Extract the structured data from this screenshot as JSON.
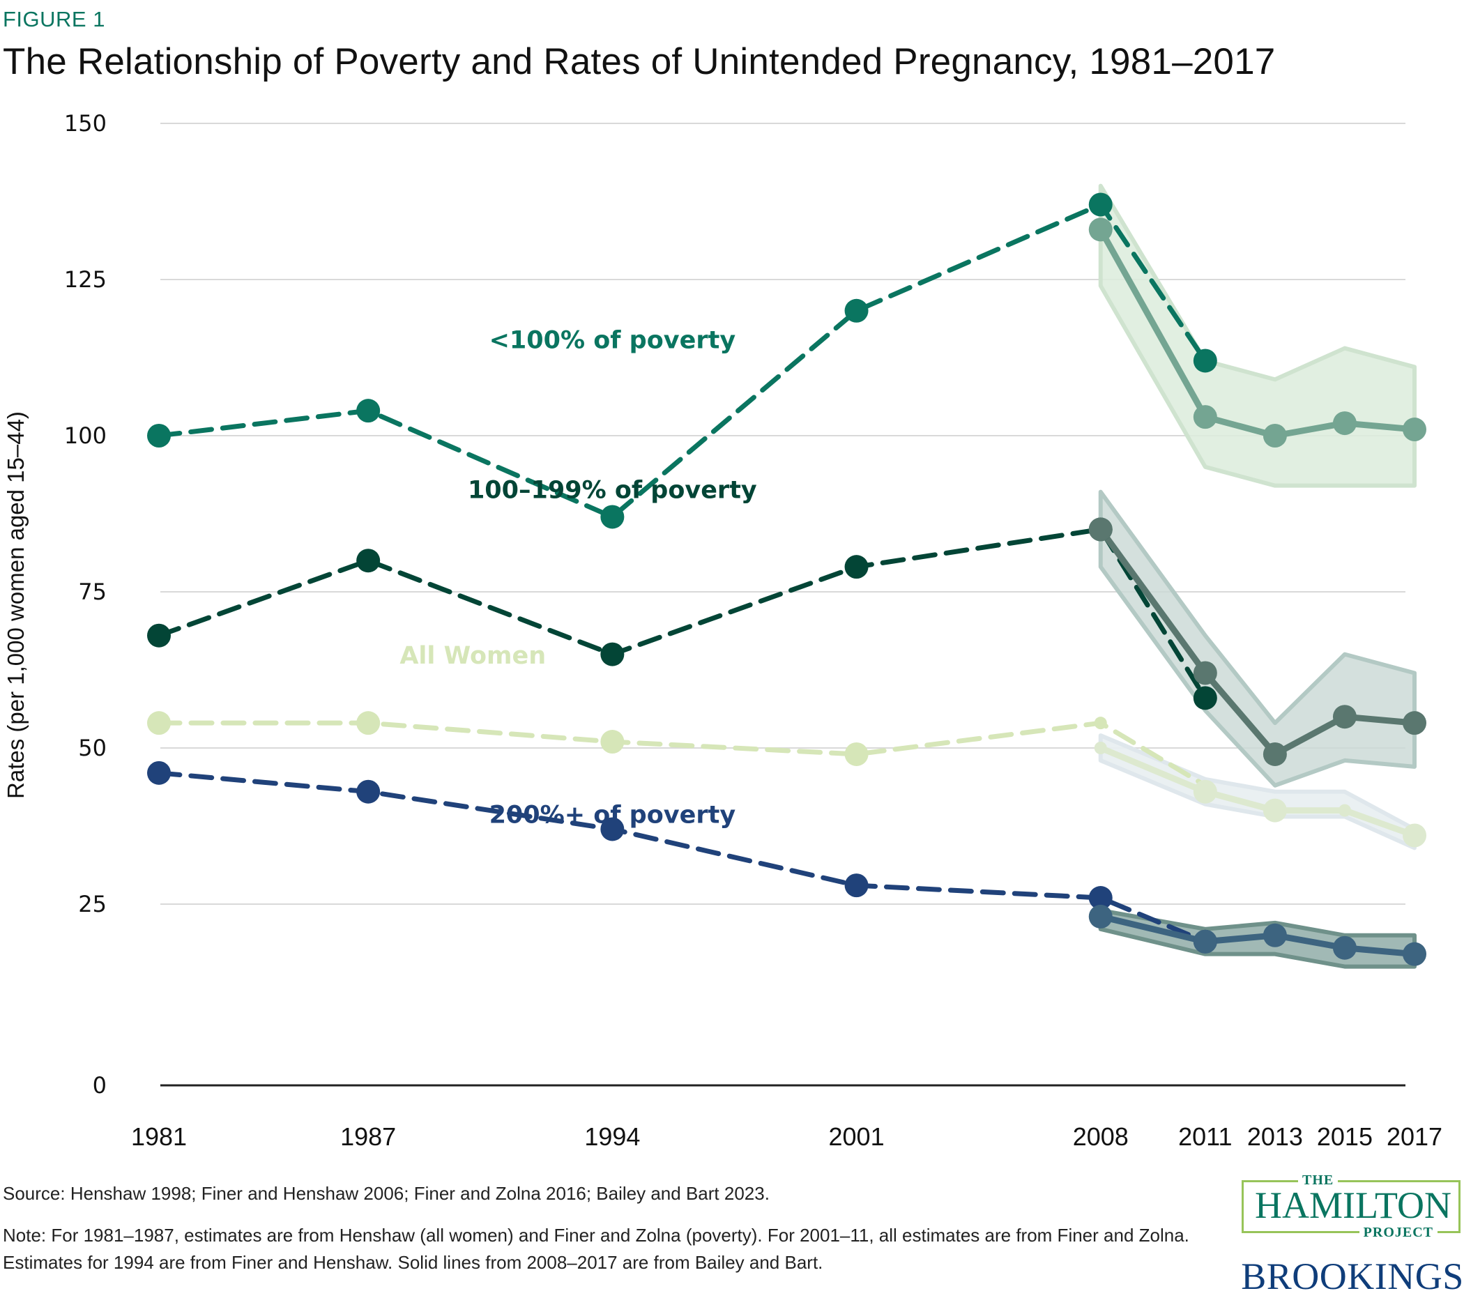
{
  "header": {
    "figure_label": "FIGURE 1",
    "title": "The Relationship of Poverty and Rates of Unintended Pregnancy, 1981–2017"
  },
  "colors": {
    "below100": "#0a7560",
    "below100_solid": "#74a592",
    "below100_band": "#dcecdc",
    "range100_199": "#034536",
    "range100_199_solid": "#5a776f",
    "range100_199_band": "#c9d8d4",
    "all_women": "#d6e6b8",
    "all_women_band": "#e8eef1",
    "above200": "#20427a",
    "above200_solid": "#3d6480",
    "above200_band": "#8aa8a3",
    "grid": "#d9d9d9",
    "axis": "#222222"
  },
  "chart_data": {
    "type": "line",
    "title": "The Relationship of Poverty and Rates of Unintended Pregnancy, 1981–2017",
    "xlabel": "",
    "ylabel": "Rates (per 1,000 women aged 15–44)",
    "ylim": [
      0,
      150
    ],
    "yticks": [
      0,
      25,
      50,
      75,
      100,
      125,
      150
    ],
    "ytick_labels": [
      "0",
      "25",
      "50",
      "75",
      "100",
      "125",
      "150"
    ],
    "x": [
      1981,
      1987,
      1994,
      2001,
      2008,
      2011,
      2013,
      2015,
      2017
    ],
    "xtick_labels": [
      "1981",
      "1987",
      "1994",
      "2001",
      "2008",
      "2011",
      "2013",
      "2015",
      "2017"
    ],
    "grid": true,
    "legend": "inline-labels",
    "series": [
      {
        "name": "<100% of poverty",
        "key": "below100",
        "label_pos": [
          1994,
          114
        ],
        "dashed": {
          "x": [
            1981,
            1987,
            1994,
            2001,
            2008,
            2011
          ],
          "values": [
            100,
            104,
            87,
            120,
            137,
            112
          ]
        },
        "solid": {
          "x": [
            2008,
            2011,
            2013,
            2015,
            2017
          ],
          "values": [
            133,
            103,
            100,
            102,
            101
          ]
        },
        "band": {
          "x": [
            2008,
            2011,
            2013,
            2015,
            2017
          ],
          "upper": [
            140,
            112,
            109,
            114,
            111
          ],
          "lower": [
            124,
            95,
            92,
            92,
            92
          ]
        }
      },
      {
        "name": "100–199% of poverty",
        "key": "range100_199",
        "label_pos": [
          1994,
          90
        ],
        "dashed": {
          "x": [
            1981,
            1987,
            1994,
            2001,
            2008,
            2011
          ],
          "values": [
            68,
            80,
            65,
            79,
            85,
            58
          ]
        },
        "solid": {
          "x": [
            2008,
            2011,
            2013,
            2015,
            2017
          ],
          "values": [
            85,
            62,
            49,
            55,
            54
          ]
        },
        "band": {
          "x": [
            2008,
            2011,
            2013,
            2015,
            2017
          ],
          "upper": [
            91,
            68,
            54,
            65,
            62
          ],
          "lower": [
            79,
            56,
            44,
            48,
            47
          ]
        }
      },
      {
        "name": "All Women",
        "key": "all_women",
        "label_pos": [
          1990,
          63.5
        ],
        "dashed": {
          "x": [
            1981,
            1987,
            1994,
            2001,
            2008,
            2011
          ],
          "values": [
            54,
            54,
            51,
            49,
            54,
            44
          ]
        },
        "solid": {
          "x": [
            2008,
            2011,
            2013,
            2015,
            2017
          ],
          "values": [
            50,
            43,
            40,
            40,
            36
          ]
        },
        "band": {
          "x": [
            2008,
            2011,
            2013,
            2015,
            2017
          ],
          "upper": [
            52,
            45,
            43,
            43,
            37
          ],
          "lower": [
            48,
            41,
            39,
            39,
            34
          ]
        }
      },
      {
        "name": "200%+ of poverty",
        "key": "above200",
        "label_pos": [
          1994,
          38
        ],
        "dashed": {
          "x": [
            1981,
            1987,
            1994,
            2001,
            2008,
            2011
          ],
          "values": [
            46,
            43,
            37,
            28,
            26,
            19
          ]
        },
        "solid": {
          "x": [
            2008,
            2011,
            2013,
            2015,
            2017
          ],
          "values": [
            23,
            19,
            20,
            18,
            17
          ]
        },
        "band": {
          "x": [
            2008,
            2011,
            2013,
            2015,
            2017
          ],
          "upper": [
            24,
            21,
            22,
            20,
            20
          ],
          "lower": [
            21,
            17,
            17,
            15,
            15
          ]
        }
      }
    ]
  },
  "footer": {
    "source": "Source: Henshaw 1998; Finer and Henshaw 2006; Finer and Zolna 2016; Bailey and Bart 2023.",
    "note": "Note: For 1981–1987, estimates are from Henshaw (all women) and Finer and Zolna (poverty). For 2001–11, all estimates are from Finer and Zolna. Estimates for 1994 are from Finer and Henshaw. Solid lines from 2008–2017 are from Bailey and Bart."
  },
  "logos": {
    "hamilton_the": "THE",
    "hamilton_name": "HAMILTON",
    "hamilton_project": "PROJECT",
    "brookings": "BROOKINGS"
  }
}
